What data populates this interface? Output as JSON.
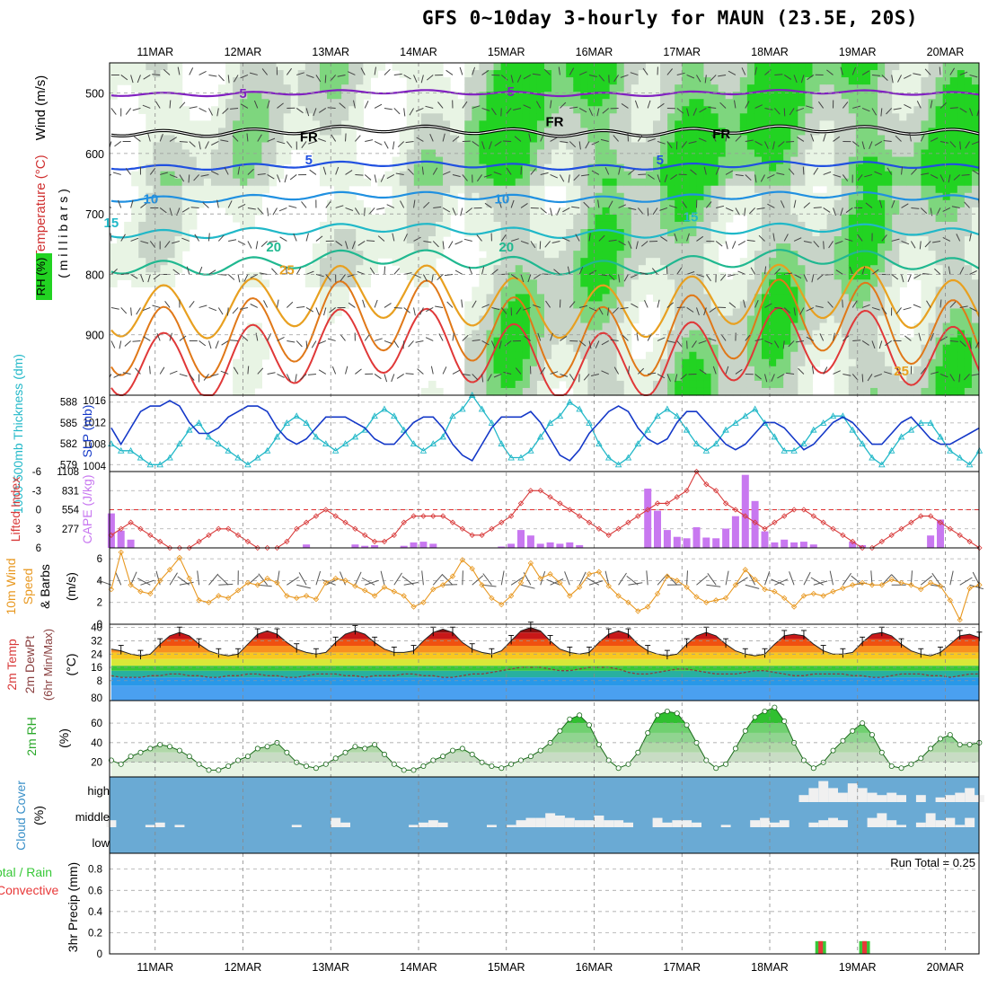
{
  "title": "GFS 0~10day 3-hourly for MAUN (23.5E, 20S)",
  "colors": {
    "rh_light": "#e8f4e4",
    "rh_mid": "#c8d4c8",
    "rh_green": "#7ed67e",
    "rh_bright": "#22d322",
    "temp": "#e8a020",
    "wind": "#444444",
    "thickness": "#22b8c8",
    "slp": "#1438c8",
    "lifted": "#d83838",
    "cape": "#c878f0",
    "speed10m": "#e89820",
    "rh2m": "#2aa82a",
    "cloud_bg": "#6aaad4",
    "cloud_fill": "#f0f0f0",
    "precip_total": "#38c838",
    "precip_conv": "#e83838"
  },
  "chart_data": [
    {
      "type": "heatmap",
      "name": "upper-air",
      "ylabel_parts": [
        "RH (%)",
        "Temperature (°C)",
        "Wind (m/s)"
      ],
      "ylabel_sub": "( m i l l i b a r s )",
      "x": [
        "11MAR",
        "12MAR",
        "13MAR",
        "14MAR",
        "15MAR",
        "16MAR",
        "17MAR",
        "18MAR",
        "19MAR",
        "20MAR"
      ],
      "y_ticks": [
        500,
        600,
        700,
        800,
        900
      ],
      "ylim": [
        1000,
        450
      ],
      "contour_labels": [
        {
          "text": "5",
          "day": 2.0,
          "p": 508,
          "color": "#8020c0"
        },
        {
          "text": "5",
          "day": 5.05,
          "p": 505,
          "color": "#8020c0"
        },
        {
          "text": "FR",
          "day": 2.75,
          "p": 580,
          "color": "#000"
        },
        {
          "text": "FR",
          "day": 5.55,
          "p": 555,
          "color": "#000"
        },
        {
          "text": "FR",
          "day": 7.45,
          "p": 575,
          "color": "#000"
        },
        {
          "text": "5",
          "day": 2.75,
          "p": 618,
          "color": "#2050e0"
        },
        {
          "text": "5",
          "day": 6.75,
          "p": 618,
          "color": "#2050e0"
        },
        {
          "text": "10",
          "day": 0.95,
          "p": 683,
          "color": "#2090e0"
        },
        {
          "text": "10",
          "day": 4.95,
          "p": 683,
          "color": "#2090e0"
        },
        {
          "text": "15",
          "day": 0.5,
          "p": 722,
          "color": "#20b8c8"
        },
        {
          "text": "15",
          "day": 7.1,
          "p": 712,
          "color": "#20b8c8"
        },
        {
          "text": "20",
          "day": 2.35,
          "p": 762,
          "color": "#20b890"
        },
        {
          "text": "20",
          "day": 5.0,
          "p": 762,
          "color": "#20b890"
        },
        {
          "text": "25",
          "day": 2.5,
          "p": 800,
          "color": "#e8a020"
        },
        {
          "text": "25",
          "day": 9.5,
          "p": 967,
          "color": "#e8a020"
        }
      ]
    },
    {
      "type": "line",
      "name": "thickness-slp",
      "ylabel_left": "1000-500mb Thickness (dm)",
      "ylabel_right": "SLP (mb)",
      "left_ticks": [
        579,
        582,
        585,
        588
      ],
      "right_ticks": [
        1004,
        1008,
        1012,
        1016
      ],
      "left_lim": [
        578,
        589
      ],
      "right_lim": [
        1003,
        1017
      ],
      "series": [
        {
          "key": "thickness",
          "values": [
            582,
            581,
            581,
            580,
            579,
            579,
            580,
            582,
            584,
            585,
            583,
            582,
            581,
            580,
            579,
            580,
            581,
            583,
            585,
            586,
            585,
            583,
            582,
            581,
            582,
            583,
            584,
            586,
            587,
            586,
            584,
            582,
            581,
            582,
            583,
            586,
            587,
            589,
            587,
            585,
            582,
            580,
            580,
            581,
            583,
            585,
            586,
            588,
            587,
            585,
            582,
            580,
            579,
            580,
            582,
            584,
            586,
            587,
            586,
            584,
            582,
            581,
            582,
            584,
            585,
            586,
            587,
            585,
            583,
            581,
            581,
            582,
            584,
            585,
            586,
            586,
            584,
            582,
            580,
            579,
            581,
            583,
            584,
            585,
            585,
            583,
            581,
            580,
            579,
            581
          ]
        },
        {
          "key": "slp",
          "values": [
            1011,
            1008,
            1011,
            1014,
            1015,
            1015,
            1016,
            1015,
            1012,
            1010,
            1010,
            1011,
            1013,
            1014,
            1015,
            1015,
            1014,
            1011,
            1009,
            1008,
            1009,
            1011,
            1013,
            1013,
            1013,
            1012,
            1011,
            1009,
            1008,
            1008,
            1010,
            1012,
            1013,
            1013,
            1011,
            1008,
            1006,
            1005,
            1008,
            1011,
            1013,
            1013,
            1013,
            1014,
            1012,
            1009,
            1006,
            1005,
            1007,
            1010,
            1012,
            1014,
            1015,
            1014,
            1011,
            1009,
            1008,
            1009,
            1012,
            1014,
            1014,
            1012,
            1010,
            1008,
            1007,
            1008,
            1010,
            1012,
            1012,
            1011,
            1009,
            1007,
            1008,
            1010,
            1012,
            1013,
            1012,
            1010,
            1008,
            1008,
            1010,
            1012,
            1013,
            1011,
            1009,
            1008,
            1008,
            1009,
            1010,
            1011
          ]
        }
      ]
    },
    {
      "type": "bar",
      "name": "lifted-cape",
      "ylabel_left": "Lifted Index",
      "ylabel_right": "CAPE (J/kg)",
      "left_ticks": [
        -6,
        -3,
        0,
        3,
        6
      ],
      "right_ticks": [
        277,
        554,
        831,
        1108
      ],
      "left_lim": [
        6,
        -6
      ],
      "cape_lim": [
        0,
        1108
      ],
      "lifted_index": [
        4,
        3,
        2,
        3,
        4,
        5,
        6,
        6,
        6,
        5,
        4,
        3,
        3,
        4,
        5,
        6,
        6,
        6,
        5,
        3,
        2,
        1,
        0,
        1,
        2,
        3,
        4,
        5,
        5,
        4,
        2,
        1,
        1,
        1,
        1,
        2,
        3,
        4,
        4,
        3,
        2,
        1,
        -1,
        -3,
        -3,
        -2,
        -1,
        0,
        1,
        2,
        3,
        4,
        3,
        2,
        1,
        0,
        -1,
        -1,
        -2,
        -3,
        -6,
        -4,
        -3,
        -1,
        0,
        1,
        2,
        3,
        2,
        1,
        0,
        0,
        1,
        2,
        3,
        4,
        5,
        6,
        6,
        5,
        4,
        3,
        2,
        1,
        1,
        2,
        3,
        4,
        5,
        6
      ],
      "cape": [
        500,
        250,
        120,
        0,
        0,
        0,
        0,
        0,
        0,
        0,
        0,
        0,
        0,
        0,
        0,
        0,
        0,
        0,
        0,
        0,
        50,
        0,
        0,
        0,
        0,
        50,
        30,
        40,
        0,
        0,
        30,
        80,
        90,
        60,
        0,
        0,
        0,
        0,
        0,
        0,
        20,
        60,
        260,
        180,
        60,
        80,
        60,
        80,
        40,
        0,
        0,
        0,
        0,
        0,
        0,
        860,
        540,
        260,
        160,
        140,
        300,
        150,
        140,
        280,
        460,
        1060,
        680,
        240,
        80,
        120,
        80,
        90,
        50,
        0,
        0,
        0,
        90,
        40,
        0,
        0,
        0,
        0,
        0,
        0,
        180,
        410,
        0,
        0,
        0,
        0
      ]
    },
    {
      "type": "line",
      "name": "wind10m",
      "ylabel": "10m Wind Speed & Barbs",
      "yunit": "(m/s)",
      "y_ticks": [
        0,
        2,
        4,
        6
      ],
      "ylim": [
        0,
        7
      ],
      "values": [
        3.2,
        6.6,
        3.6,
        3.0,
        2.8,
        4.0,
        5.0,
        6.1,
        4.2,
        2.2,
        2.0,
        2.6,
        2.4,
        3.1,
        3.8,
        3.6,
        4.2,
        3.8,
        2.6,
        2.4,
        2.6,
        2.3,
        3.8,
        4.2,
        4.0,
        3.5,
        3.1,
        2.6,
        3.4,
        3.0,
        2.6,
        1.6,
        2.0,
        3.2,
        3.6,
        4.4,
        5.9,
        5.1,
        3.6,
        2.4,
        1.8,
        2.6,
        3.8,
        5.6,
        4.2,
        4.6,
        3.8,
        2.6,
        3.4,
        4.6,
        4.8,
        3.5,
        2.6,
        2.0,
        1.2,
        1.6,
        2.8,
        4.4,
        4.0,
        3.4,
        2.5,
        2.0,
        2.2,
        2.4,
        3.6,
        5.0,
        4.1,
        3.2,
        3.0,
        2.4,
        1.6,
        2.6,
        2.8,
        2.6,
        3.0,
        3.3,
        3.6,
        3.8,
        3.6,
        3.6,
        4.1,
        3.8,
        3.6,
        3.2,
        3.8,
        3.5,
        2.2,
        0.4,
        3.3,
        3.6
      ]
    },
    {
      "type": "area",
      "name": "temp2m",
      "ylabel_lines": [
        "2m Temp",
        "2m DewPt",
        "(6hr Min/Max)"
      ],
      "yunit": "(°C)",
      "y_ticks": [
        8,
        16,
        24,
        32,
        40
      ],
      "bottom_tick": "80",
      "ylim": [
        -4,
        42
      ],
      "temp": [
        27,
        26,
        24,
        23,
        24,
        30,
        35,
        37,
        35,
        30,
        26,
        24,
        23,
        24,
        30,
        36,
        38,
        36,
        31,
        27,
        25,
        24,
        25,
        31,
        36,
        38,
        36,
        31,
        27,
        25,
        25,
        26,
        32,
        37,
        39,
        37,
        31,
        27,
        25,
        24,
        26,
        32,
        38,
        40,
        38,
        32,
        27,
        25,
        24,
        25,
        31,
        36,
        38,
        36,
        30,
        26,
        24,
        23,
        24,
        30,
        35,
        37,
        35,
        30,
        26,
        24,
        23,
        24,
        30,
        35,
        36,
        35,
        30,
        26,
        24,
        24,
        25,
        31,
        36,
        37,
        35,
        30,
        26,
        24,
        23,
        25,
        30,
        35,
        36,
        34
      ],
      "dewpt": [
        11,
        10,
        10,
        10,
        11,
        11,
        12,
        12,
        11,
        11,
        10,
        10,
        11,
        11,
        12,
        12,
        11,
        11,
        10,
        10,
        11,
        12,
        12,
        12,
        11,
        11,
        10,
        11,
        11,
        11,
        12,
        12,
        11,
        11,
        10,
        10,
        11,
        12,
        12,
        13,
        14,
        15,
        16,
        16,
        16,
        15,
        14,
        14,
        15,
        16,
        16,
        16,
        15,
        13,
        12,
        12,
        13,
        14,
        15,
        15,
        14,
        13,
        12,
        12,
        12,
        13,
        14,
        14,
        13,
        12,
        11,
        11,
        12,
        12,
        12,
        12,
        11,
        11,
        10,
        10,
        11,
        12,
        12,
        12,
        11,
        11,
        10,
        11,
        12,
        12
      ]
    },
    {
      "type": "area",
      "name": "rh2m",
      "ylabel": "2m RH",
      "yunit": "(%)",
      "y_ticks": [
        20,
        40,
        60
      ],
      "ylim": [
        5,
        83
      ],
      "values": [
        22,
        18,
        26,
        30,
        34,
        38,
        36,
        32,
        26,
        18,
        12,
        12,
        16,
        22,
        26,
        34,
        36,
        40,
        30,
        20,
        16,
        14,
        18,
        24,
        30,
        36,
        34,
        38,
        28,
        18,
        12,
        12,
        16,
        22,
        26,
        32,
        34,
        28,
        20,
        16,
        14,
        18,
        22,
        26,
        32,
        40,
        52,
        64,
        68,
        58,
        38,
        22,
        14,
        18,
        30,
        50,
        68,
        72,
        70,
        58,
        40,
        22,
        14,
        18,
        34,
        52,
        66,
        72,
        76,
        62,
        40,
        22,
        14,
        20,
        32,
        42,
        52,
        60,
        48,
        30,
        16,
        14,
        18,
        24,
        34,
        44,
        48,
        38,
        38,
        40
      ]
    },
    {
      "type": "heatmap",
      "name": "cloud",
      "ylabel": "Cloud Cover",
      "yunit": "(%)",
      "levels": [
        "high",
        "middle",
        "low"
      ],
      "high": [
        0,
        0,
        0,
        0,
        0,
        0,
        0,
        0,
        0,
        0,
        0,
        0,
        0,
        0,
        0,
        0,
        0,
        0,
        0,
        0,
        0,
        0,
        0,
        0,
        0,
        0,
        0,
        0,
        0,
        0,
        0,
        0,
        0,
        0,
        0,
        0,
        0,
        0,
        0,
        0,
        0,
        0,
        0,
        0,
        0,
        0,
        0,
        0,
        0,
        0,
        0,
        0,
        0,
        0,
        0,
        0,
        0,
        0,
        0,
        0,
        0,
        0,
        0,
        0,
        0,
        0,
        0,
        0,
        0,
        0,
        0,
        30,
        60,
        90,
        60,
        40,
        80,
        60,
        40,
        30,
        40,
        30,
        0,
        30,
        0,
        20,
        30,
        40,
        60,
        30
      ],
      "middle": [
        30,
        0,
        0,
        0,
        10,
        20,
        0,
        10,
        0,
        0,
        0,
        0,
        0,
        0,
        0,
        0,
        0,
        0,
        0,
        10,
        0,
        0,
        0,
        40,
        20,
        0,
        0,
        0,
        0,
        0,
        0,
        10,
        20,
        30,
        20,
        0,
        0,
        0,
        0,
        10,
        0,
        10,
        30,
        40,
        40,
        60,
        50,
        40,
        30,
        30,
        50,
        30,
        30,
        20,
        0,
        0,
        40,
        20,
        30,
        30,
        20,
        0,
        0,
        10,
        0,
        0,
        30,
        40,
        20,
        30,
        0,
        0,
        20,
        30,
        40,
        30,
        0,
        0,
        40,
        60,
        30,
        10,
        0,
        20,
        60,
        30,
        40,
        10,
        40,
        0
      ],
      "low": [
        0,
        0,
        0,
        0,
        0,
        0,
        0,
        0,
        0,
        0,
        0,
        0,
        0,
        0,
        0,
        0,
        0,
        0,
        0,
        0,
        0,
        0,
        0,
        0,
        0,
        0,
        0,
        0,
        0,
        0,
        0,
        0,
        0,
        0,
        0,
        0,
        0,
        0,
        0,
        0,
        0,
        0,
        0,
        0,
        0,
        0,
        0,
        0,
        0,
        0,
        0,
        0,
        0,
        0,
        0,
        0,
        0,
        0,
        0,
        0,
        0,
        0,
        0,
        0,
        0,
        0,
        0,
        0,
        0,
        0,
        0,
        0,
        0,
        0,
        0,
        0,
        0,
        0,
        0,
        0,
        0,
        0,
        0,
        0,
        0,
        0,
        0,
        0,
        0,
        0
      ]
    },
    {
      "type": "bar",
      "name": "precip",
      "ylabel_lines": [
        "Total / Rain",
        "Convective"
      ],
      "yunit": "3hr Precip (mm)",
      "y_ticks": [
        0,
        0.2,
        0.4,
        0.6,
        0.8
      ],
      "ylim": [
        0,
        0.95
      ],
      "run_total_label": "Run Total = 0.25",
      "events": [
        {
          "day": 8.58,
          "total": 0.12,
          "conv": 0.12
        },
        {
          "day": 9.08,
          "total": 0.12,
          "conv": 0.12
        }
      ]
    }
  ]
}
